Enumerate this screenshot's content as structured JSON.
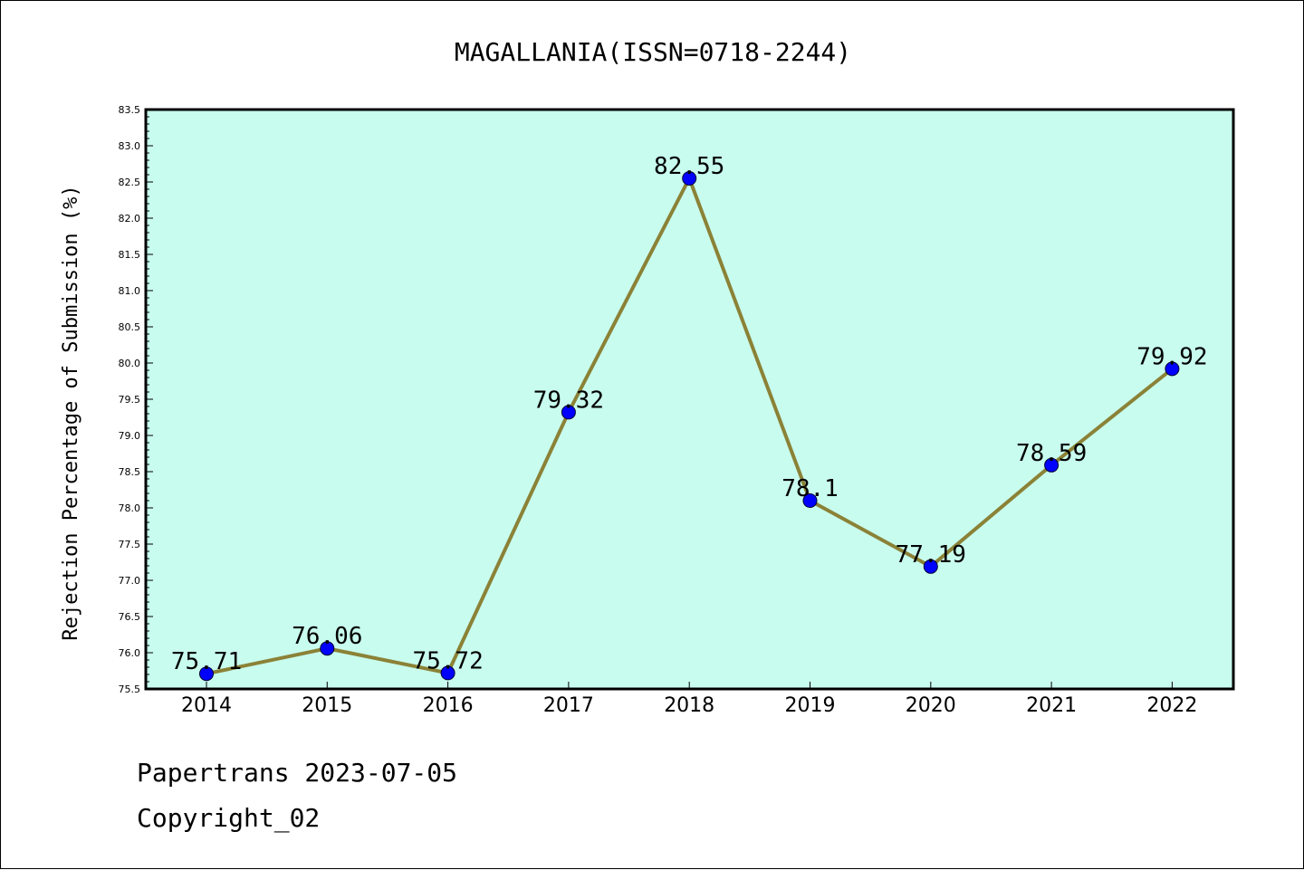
{
  "chart_data": {
    "type": "line",
    "title": "MAGALLANIA(ISSN=0718-2244)",
    "xlabel": "",
    "ylabel": "Rejection Percentage of Submission (%)",
    "categories": [
      "2014",
      "2015",
      "2016",
      "2017",
      "2018",
      "2019",
      "2020",
      "2021",
      "2022"
    ],
    "series": [
      {
        "values": [
          75.71,
          76.06,
          75.72,
          79.32,
          82.55,
          78.1,
          77.19,
          78.59,
          79.92
        ],
        "labels": [
          "75.71",
          "76.06",
          "75.72",
          "79.32",
          "82.55",
          "78.1",
          "77.19",
          "78.59",
          "79.92"
        ]
      }
    ],
    "ylim": [
      75.5,
      83.5
    ],
    "yticks": [
      "75.5",
      "76.0",
      "76.5",
      "77.0",
      "77.5",
      "78.0",
      "78.5",
      "79.0",
      "79.5",
      "80.0",
      "80.5",
      "81.0",
      "81.5",
      "82.0",
      "82.5",
      "83.0",
      "83.5"
    ],
    "grid": false,
    "legend": "none",
    "colors": {
      "plot_background": "#c8fcee",
      "line": "#8b8237",
      "marker": "#0000ff"
    }
  },
  "footer": {
    "line1": "Papertrans 2023-07-05",
    "line2": "Copyright_02"
  }
}
